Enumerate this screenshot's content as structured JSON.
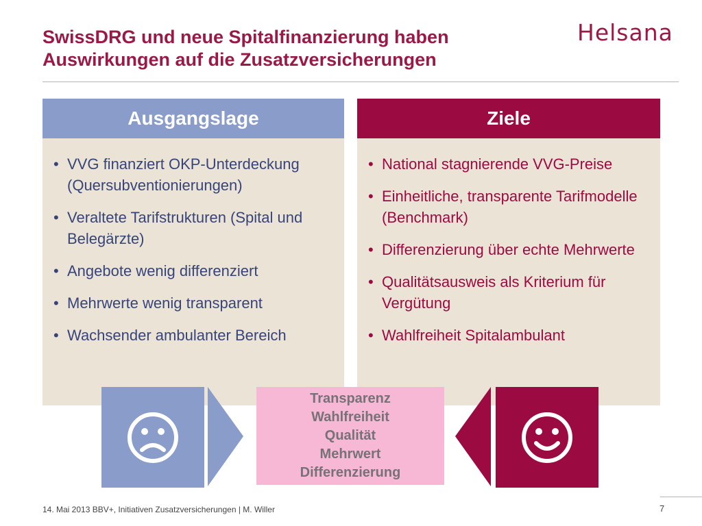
{
  "header": {
    "title_line1": "SwissDRG und neue Spitalfinanzierung haben",
    "title_line2": "Auswirkungen auf die Zusatzversicherungen",
    "logo_text": "Helsana"
  },
  "left_panel": {
    "heading": "Ausgangslage",
    "items": [
      "VVG finanziert OKP-Unterdeckung (Quersubventionierungen)",
      "Veraltete Tarifstrukturen (Spital und Belegärzte)",
      "Angebote wenig differenziert",
      "Mehrwerte wenig transparent",
      "Wachsender ambulanter Bereich"
    ]
  },
  "right_panel": {
    "heading": "Ziele",
    "items": [
      "National stagnierende VVG-Preise",
      "Einheitliche, transparente Tarifmodelle (Benchmark)",
      "Differenzierung über echte Mehrwerte",
      "Qualitätsausweis als Kriterium für Vergütung",
      "Wahlfreiheit Spitalambulant"
    ]
  },
  "center_box": {
    "items": [
      "Transparenz",
      "Wahlfreiheit",
      "Qualität",
      "Mehrwert",
      "Differenzierung"
    ]
  },
  "icons": {
    "sad": "sad-face-icon",
    "happy": "happy-face-icon"
  },
  "colors": {
    "brand": "#9b0a41",
    "blue": "#8a9cc9",
    "pink": "#f7b8d6",
    "beige": "#ece3d7"
  },
  "footer": {
    "text": "14. Mai 2013 BBV+, Initiativen Zusatzversicherungen | M. Willer",
    "page_number": "7"
  }
}
